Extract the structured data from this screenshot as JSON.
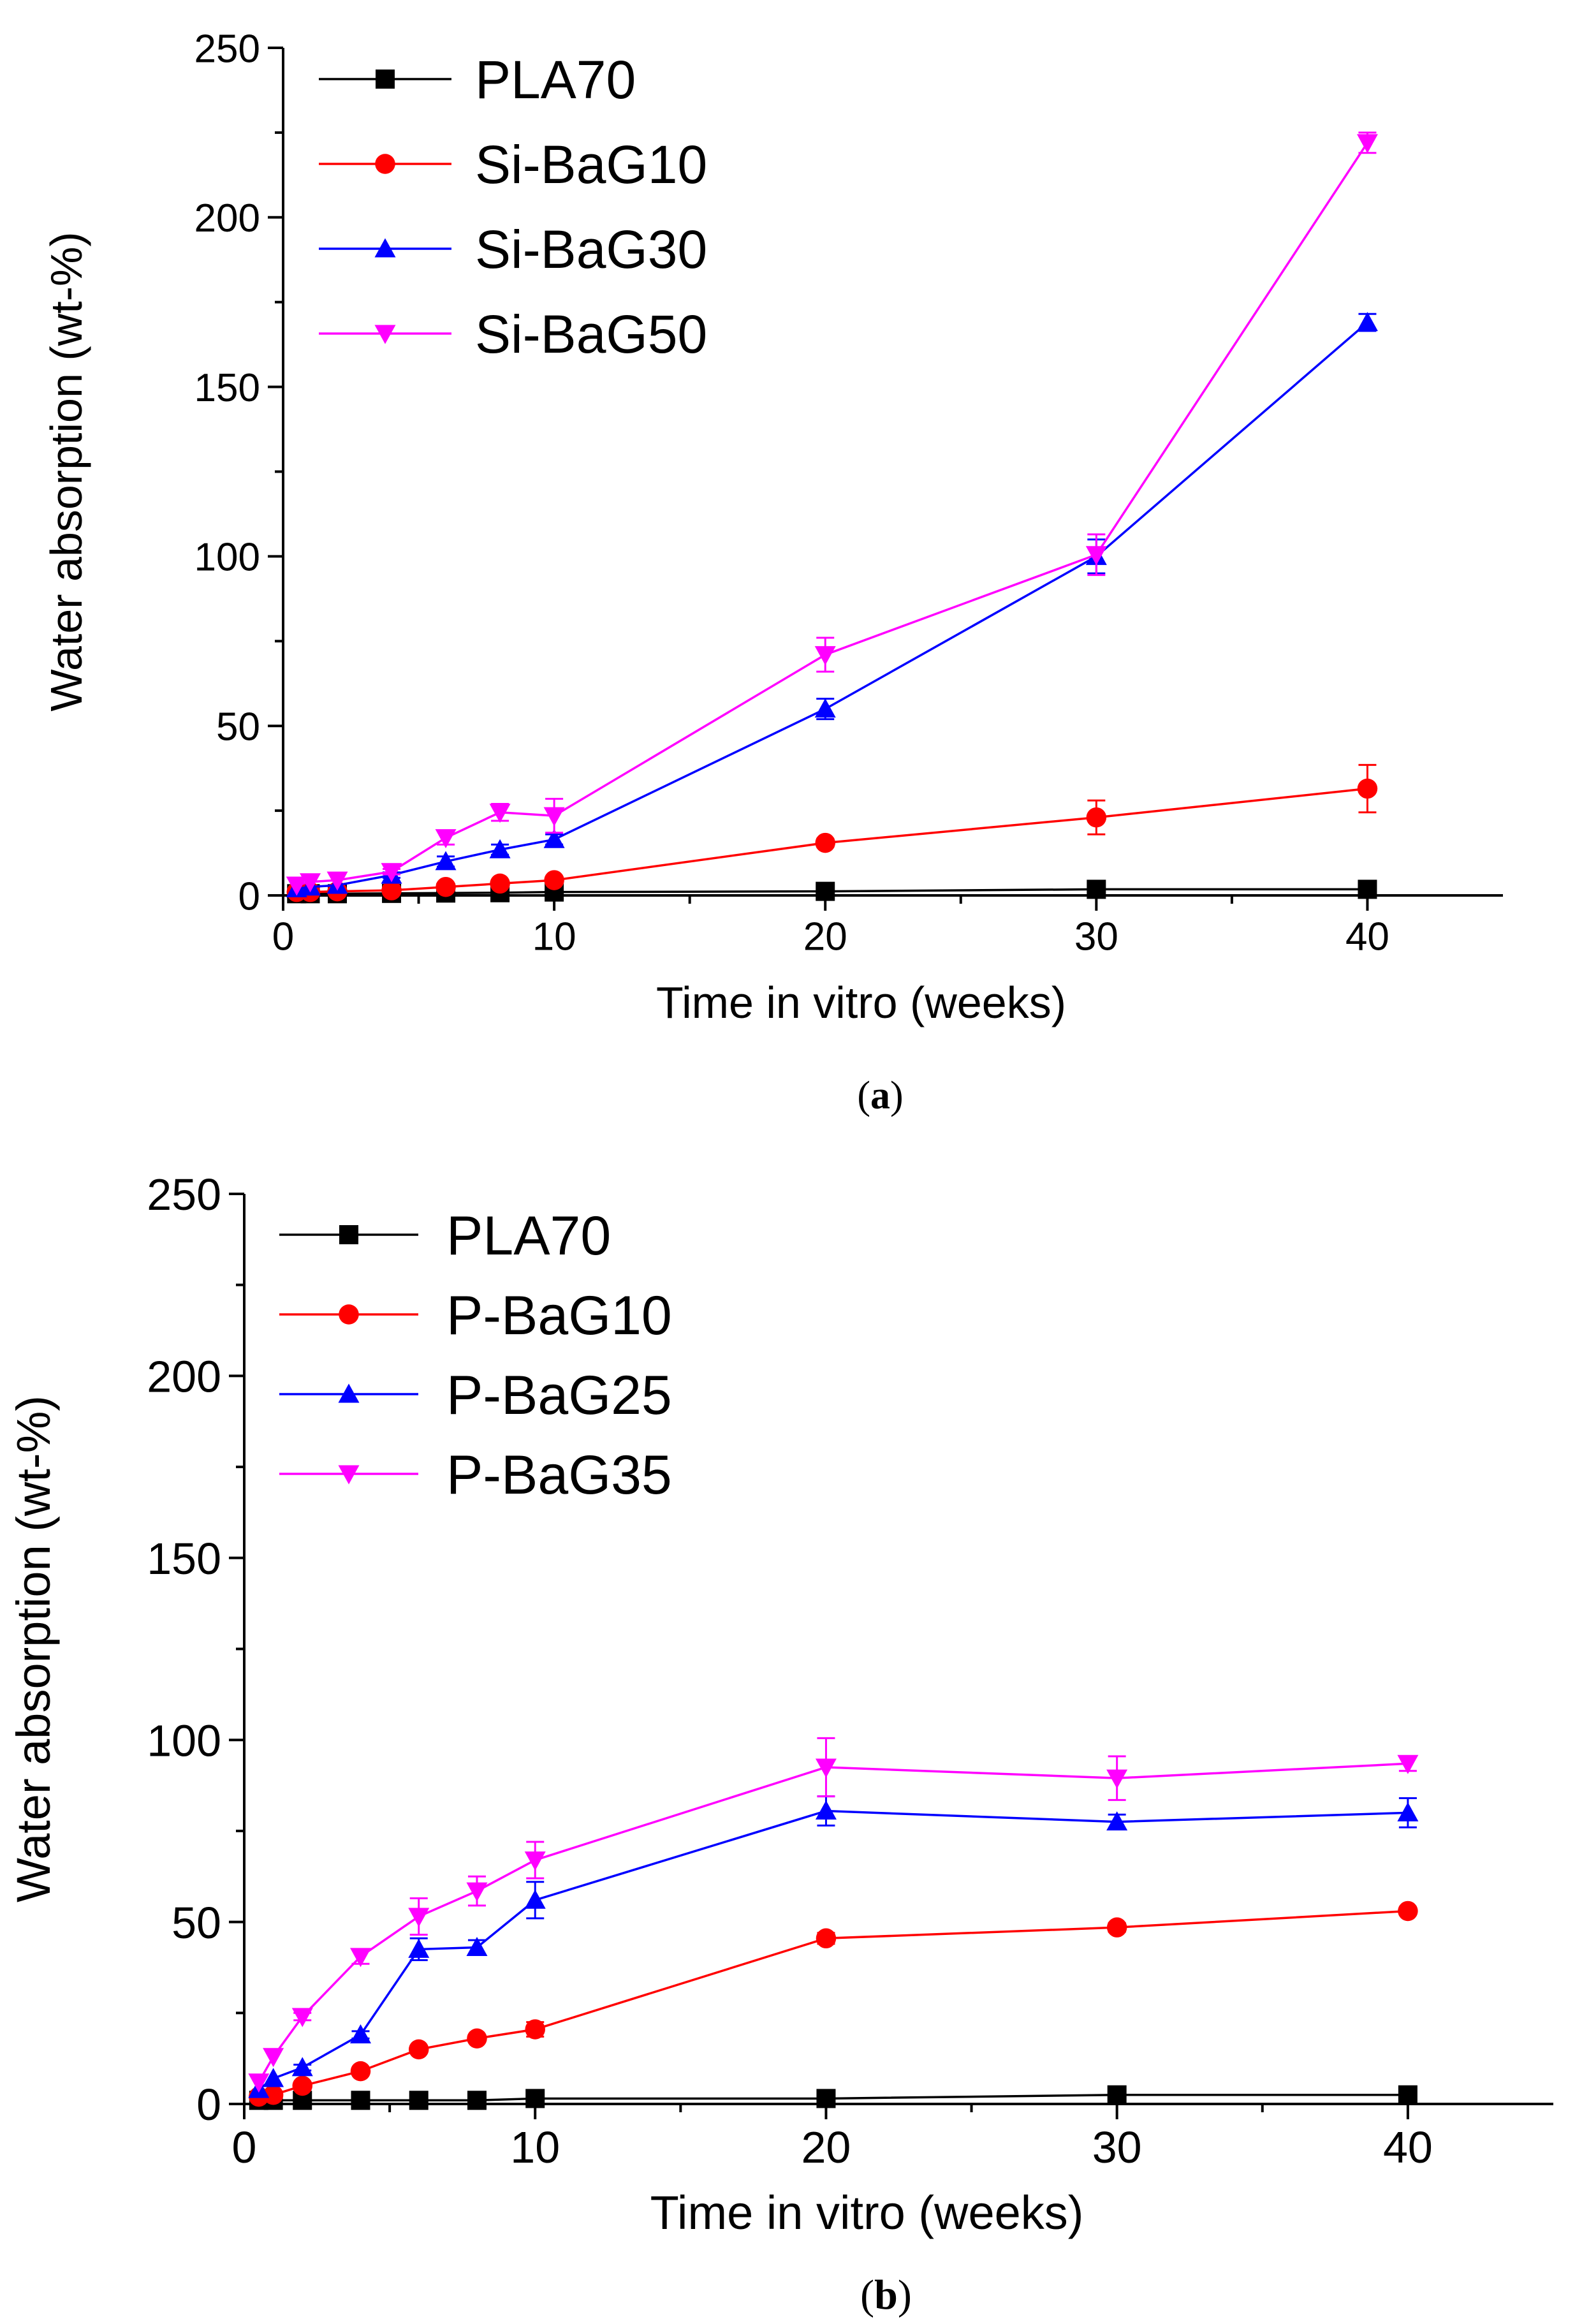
{
  "chart_data": [
    {
      "type": "line",
      "caption": "(a)",
      "panel_label": "a",
      "xlabel": "Time in vitro (weeks)",
      "ylabel": "Water absorption (wt-%)",
      "xlim": [
        0,
        45
      ],
      "ylim": [
        0,
        250
      ],
      "xticks": [
        0,
        10,
        20,
        30,
        40
      ],
      "yticks": [
        0,
        50,
        100,
        150,
        200,
        250
      ],
      "legend_position": "top-left",
      "series": [
        {
          "name": "PLA70",
          "color": "#000000",
          "marker": "square",
          "x": [
            0.5,
            1,
            2,
            4,
            6,
            8,
            10,
            20,
            30,
            40
          ],
          "values": [
            0.5,
            0.5,
            0.5,
            0.6,
            0.7,
            0.8,
            1.0,
            1.2,
            1.8,
            1.8
          ],
          "errors": [
            0,
            0,
            0,
            0,
            0,
            0,
            0,
            0,
            0.3,
            0.3
          ]
        },
        {
          "name": "Si-BaG10",
          "color": "#ff0000",
          "marker": "circle",
          "x": [
            0.5,
            1,
            2,
            4,
            6,
            8,
            10,
            20,
            30,
            40
          ],
          "values": [
            1.0,
            1.0,
            1.2,
            1.5,
            2.5,
            3.5,
            4.5,
            15.5,
            23,
            31.5
          ],
          "errors": [
            0,
            0,
            0,
            0,
            0.3,
            0.5,
            0.8,
            1.2,
            5,
            7
          ]
        },
        {
          "name": "Si-BaG30",
          "color": "#0000ff",
          "marker": "triangle-up",
          "x": [
            0.5,
            1,
            2,
            4,
            6,
            8,
            10,
            20,
            30,
            40
          ],
          "values": [
            2.0,
            2.5,
            3.0,
            6.0,
            10,
            13.5,
            16.5,
            55,
            100,
            169
          ],
          "errors": [
            0,
            0,
            0,
            0.8,
            1.5,
            1.5,
            1.5,
            3,
            5,
            2.5
          ]
        },
        {
          "name": "Si-BaG50",
          "color": "#ff00ff",
          "marker": "triangle-down",
          "x": [
            0.5,
            1,
            2,
            4,
            6,
            8,
            10,
            20,
            30,
            40
          ],
          "values": [
            3.0,
            4.0,
            4.5,
            7.0,
            17,
            24.5,
            23.5,
            71,
            100.5,
            222
          ],
          "errors": [
            0,
            0,
            0,
            0.8,
            2,
            2.5,
            5,
            5,
            6,
            3
          ]
        }
      ]
    },
    {
      "type": "line",
      "caption": "(b)",
      "panel_label": "b",
      "xlabel": "Time in vitro (weeks)",
      "ylabel": "Water absorption (wt-%)",
      "xlim": [
        0,
        45
      ],
      "ylim": [
        0,
        250
      ],
      "xticks": [
        0,
        10,
        20,
        30,
        40
      ],
      "yticks": [
        0,
        50,
        100,
        150,
        200,
        250
      ],
      "legend_position": "top-left",
      "series": [
        {
          "name": "PLA70",
          "color": "#000000",
          "marker": "square",
          "x": [
            0.5,
            1,
            2,
            4,
            6,
            8,
            10,
            20,
            30,
            40
          ],
          "values": [
            1.0,
            1.0,
            1.0,
            1.0,
            1.0,
            1.0,
            1.5,
            1.5,
            2.5,
            2.5
          ],
          "errors": [
            0,
            0,
            0,
            0,
            0,
            0,
            0,
            0,
            0,
            0
          ]
        },
        {
          "name": "P-BaG10",
          "color": "#ff0000",
          "marker": "circle",
          "x": [
            0.5,
            1,
            2,
            4,
            6,
            8,
            10,
            20,
            30,
            40
          ],
          "values": [
            2.0,
            2.5,
            5,
            9,
            15,
            18,
            20.5,
            45.5,
            48.5,
            53
          ],
          "errors": [
            0,
            0,
            0.5,
            0.8,
            1,
            1,
            2,
            1.5,
            1.2,
            1
          ]
        },
        {
          "name": "P-BaG25",
          "color": "#0000ff",
          "marker": "triangle-up",
          "x": [
            0.5,
            1,
            2,
            4,
            6,
            8,
            10,
            20,
            30,
            40
          ],
          "values": [
            4.0,
            7,
            10,
            19,
            42.5,
            43,
            56,
            80.5,
            77.5,
            80
          ],
          "errors": [
            0,
            0,
            0.8,
            1,
            3,
            2,
            5,
            4,
            2,
            4
          ]
        },
        {
          "name": "P-BaG35",
          "color": "#ff00ff",
          "marker": "triangle-down",
          "x": [
            0.5,
            1,
            2,
            4,
            6,
            8,
            10,
            20,
            30,
            40
          ],
          "values": [
            6.0,
            13,
            24,
            40.5,
            51.5,
            58.5,
            67,
            92.5,
            89.5,
            93.5
          ],
          "errors": [
            0,
            0,
            1,
            2,
            5,
            4,
            5,
            8,
            6,
            2
          ]
        }
      ]
    }
  ]
}
